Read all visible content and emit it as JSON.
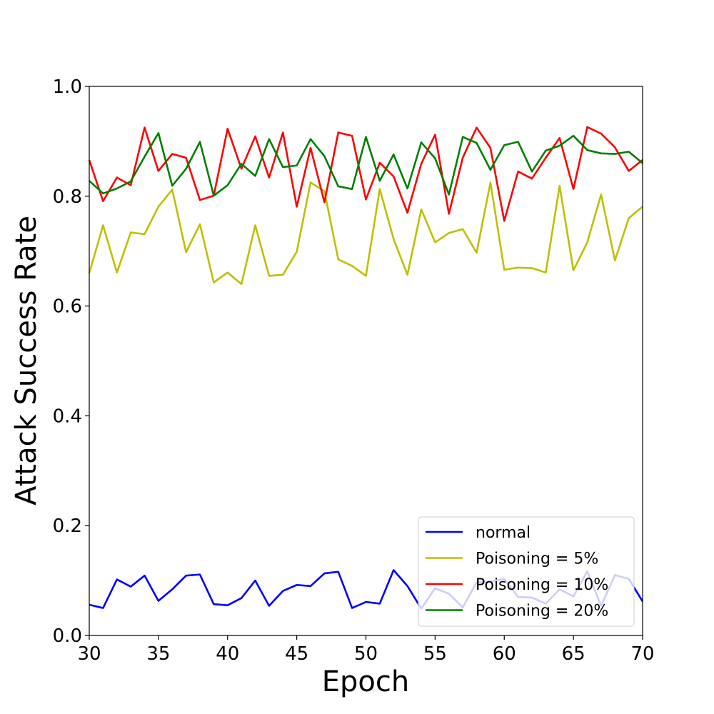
{
  "chart_data": {
    "type": "line",
    "xlabel": "Epoch",
    "ylabel": "Attack Success Rate",
    "xlim": [
      30,
      70
    ],
    "ylim": [
      0.0,
      1.0
    ],
    "xticks": [
      30,
      35,
      40,
      45,
      50,
      55,
      60,
      65,
      70
    ],
    "yticks": [
      0.0,
      0.2,
      0.4,
      0.6,
      0.8,
      1.0
    ],
    "xtick_labels": [
      "30",
      "35",
      "40",
      "45",
      "50",
      "55",
      "60",
      "65",
      "70"
    ],
    "ytick_labels": [
      "0.0",
      "0.2",
      "0.4",
      "0.6",
      "0.8",
      "1.0"
    ],
    "grid": false,
    "legend_position": "lower-right",
    "x": [
      30,
      31,
      32,
      33,
      34,
      35,
      36,
      37,
      38,
      39,
      40,
      41,
      42,
      43,
      44,
      45,
      46,
      47,
      48,
      49,
      50,
      51,
      52,
      53,
      54,
      55,
      56,
      57,
      58,
      59,
      60,
      61,
      62,
      63,
      64,
      65,
      66,
      67,
      68,
      69,
      70
    ],
    "series": [
      {
        "name": "normal",
        "color": "#0000ff",
        "values": [
          0.056,
          0.05,
          0.102,
          0.089,
          0.109,
          0.063,
          0.084,
          0.109,
          0.111,
          0.057,
          0.055,
          0.068,
          0.1,
          0.054,
          0.081,
          0.092,
          0.09,
          0.113,
          0.116,
          0.05,
          0.061,
          0.058,
          0.119,
          0.09,
          0.049,
          0.086,
          0.076,
          0.051,
          0.097,
          0.098,
          0.103,
          0.07,
          0.069,
          0.058,
          0.084,
          0.071,
          0.117,
          0.054,
          0.11,
          0.103,
          0.062
        ]
      },
      {
        "name": "Poisoning = 5%",
        "color": "#bfbf00",
        "values": [
          0.66,
          0.747,
          0.661,
          0.734,
          0.731,
          0.781,
          0.812,
          0.698,
          0.749,
          0.643,
          0.661,
          0.64,
          0.747,
          0.655,
          0.657,
          0.699,
          0.825,
          0.809,
          0.685,
          0.673,
          0.655,
          0.813,
          0.722,
          0.657,
          0.776,
          0.716,
          0.733,
          0.74,
          0.697,
          0.825,
          0.666,
          0.67,
          0.669,
          0.661,
          0.819,
          0.665,
          0.716,
          0.803,
          0.683,
          0.76,
          0.781
        ]
      },
      {
        "name": "Poisoning = 10%",
        "color": "#ff0000",
        "values": [
          0.866,
          0.791,
          0.834,
          0.82,
          0.925,
          0.846,
          0.877,
          0.87,
          0.793,
          0.801,
          0.923,
          0.85,
          0.909,
          0.834,
          0.916,
          0.781,
          0.888,
          0.789,
          0.916,
          0.91,
          0.794,
          0.861,
          0.836,
          0.77,
          0.859,
          0.912,
          0.768,
          0.87,
          0.925,
          0.888,
          0.755,
          0.845,
          0.832,
          0.87,
          0.906,
          0.813,
          0.926,
          0.914,
          0.889,
          0.846,
          0.866
        ]
      },
      {
        "name": "Poisoning = 20%",
        "color": "#008000",
        "values": [
          0.828,
          0.805,
          0.814,
          0.827,
          0.872,
          0.915,
          0.819,
          0.85,
          0.899,
          0.801,
          0.82,
          0.859,
          0.837,
          0.904,
          0.853,
          0.856,
          0.904,
          0.873,
          0.818,
          0.813,
          0.908,
          0.828,
          0.876,
          0.814,
          0.898,
          0.869,
          0.803,
          0.908,
          0.897,
          0.848,
          0.893,
          0.899,
          0.845,
          0.883,
          0.892,
          0.91,
          0.884,
          0.878,
          0.877,
          0.881,
          0.86
        ]
      }
    ]
  }
}
